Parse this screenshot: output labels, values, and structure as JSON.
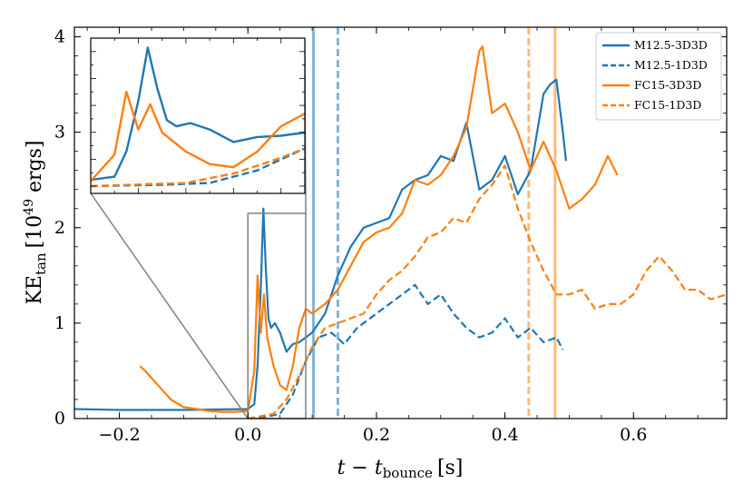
{
  "chart_data": {
    "type": "line",
    "xlabel": "t − t",
    "xlabel_sub": "bounce",
    "xlabel_unit": "[s]",
    "ylabel": "KE",
    "ylabel_sub": "tan",
    "ylabel_unit": "[10",
    "ylabel_exp": "49",
    "ylabel_unit_end": " ergs]",
    "xlim": [
      -0.27,
      0.745
    ],
    "ylim": [
      0,
      4.1
    ],
    "xticks": [
      -0.2,
      0.0,
      0.2,
      0.4,
      0.6
    ],
    "xtick_labels": [
      "−0.2",
      "0.0",
      "0.2",
      "0.4",
      "0.6"
    ],
    "yticks": [
      0,
      1,
      2,
      3,
      4
    ],
    "ytick_labels": [
      "0",
      "1",
      "2",
      "3",
      "4"
    ],
    "grid": false,
    "legend_position": "top-right",
    "colors": {
      "blue": "#1f77b4",
      "orange": "#ff7f0e"
    },
    "series": [
      {
        "name": "M12.5-3D3D",
        "color": "#1f77b4",
        "style": "solid",
        "x": [
          -0.27,
          -0.2,
          -0.1,
          0.0,
          0.01,
          0.015,
          0.02,
          0.024,
          0.028,
          0.032,
          0.036,
          0.042,
          0.05,
          0.06,
          0.07,
          0.08,
          0.09,
          0.1,
          0.12,
          0.14,
          0.16,
          0.18,
          0.2,
          0.22,
          0.24,
          0.26,
          0.28,
          0.3,
          0.32,
          0.34,
          0.36,
          0.38,
          0.4,
          0.42,
          0.44,
          0.46,
          0.47,
          0.48,
          0.49,
          0.495
        ],
        "y": [
          0.1,
          0.09,
          0.09,
          0.1,
          0.15,
          0.55,
          1.35,
          2.2,
          1.55,
          1.05,
          0.95,
          1.0,
          0.9,
          0.7,
          0.78,
          0.8,
          0.85,
          0.9,
          1.1,
          1.5,
          1.8,
          2.0,
          2.05,
          2.1,
          2.4,
          2.5,
          2.55,
          2.75,
          2.7,
          3.1,
          2.4,
          2.5,
          2.75,
          2.35,
          2.6,
          3.4,
          3.5,
          3.55,
          3.0,
          2.7
        ]
      },
      {
        "name": "M12.5-1D3D",
        "color": "#1f77b4",
        "style": "dashed",
        "x": [
          0.0,
          0.03,
          0.05,
          0.07,
          0.09,
          0.11,
          0.13,
          0.15,
          0.17,
          0.2,
          0.23,
          0.26,
          0.28,
          0.3,
          0.32,
          0.34,
          0.36,
          0.38,
          0.4,
          0.42,
          0.44,
          0.46,
          0.48,
          0.49
        ],
        "y": [
          0.0,
          0.02,
          0.05,
          0.25,
          0.6,
          0.85,
          0.9,
          0.78,
          0.95,
          1.1,
          1.25,
          1.4,
          1.2,
          1.3,
          1.1,
          0.95,
          0.85,
          0.9,
          1.05,
          0.85,
          0.95,
          0.8,
          0.85,
          0.72
        ]
      },
      {
        "name": "FC15-3D3D",
        "color": "#ff7f0e",
        "style": "solid",
        "x": [
          -0.168,
          -0.16,
          -0.14,
          -0.12,
          -0.1,
          -0.08,
          -0.06,
          -0.04,
          -0.02,
          0.0,
          0.01,
          0.015,
          0.02,
          0.025,
          0.03,
          0.04,
          0.05,
          0.06,
          0.07,
          0.08,
          0.09,
          0.1,
          0.12,
          0.14,
          0.16,
          0.18,
          0.2,
          0.22,
          0.24,
          0.26,
          0.28,
          0.3,
          0.32,
          0.34,
          0.36,
          0.365,
          0.38,
          0.4,
          0.42,
          0.44,
          0.46,
          0.48,
          0.5,
          0.52,
          0.54,
          0.56,
          0.575
        ],
        "y": [
          0.55,
          0.5,
          0.35,
          0.2,
          0.12,
          0.1,
          0.08,
          0.07,
          0.07,
          0.08,
          0.5,
          1.5,
          0.9,
          1.3,
          0.85,
          0.55,
          0.35,
          0.3,
          0.55,
          0.95,
          1.15,
          1.1,
          1.2,
          1.35,
          1.6,
          1.85,
          1.95,
          2.0,
          2.15,
          2.5,
          2.45,
          2.55,
          2.75,
          3.05,
          3.85,
          3.9,
          3.2,
          3.3,
          3.0,
          2.6,
          2.9,
          2.6,
          2.2,
          2.3,
          2.45,
          2.75,
          2.55
        ]
      },
      {
        "name": "FC15-1D3D",
        "color": "#ff7f0e",
        "style": "dashed",
        "x": [
          0.0,
          0.04,
          0.06,
          0.08,
          0.1,
          0.12,
          0.14,
          0.16,
          0.18,
          0.2,
          0.22,
          0.24,
          0.26,
          0.28,
          0.3,
          0.32,
          0.34,
          0.36,
          0.38,
          0.4,
          0.42,
          0.44,
          0.46,
          0.48,
          0.5,
          0.52,
          0.54,
          0.56,
          0.58,
          0.6,
          0.62,
          0.64,
          0.66,
          0.68,
          0.7,
          0.72,
          0.745
        ],
        "y": [
          0.0,
          0.05,
          0.2,
          0.45,
          0.75,
          0.95,
          1.0,
          1.05,
          1.1,
          1.3,
          1.45,
          1.55,
          1.7,
          1.9,
          1.95,
          2.1,
          2.05,
          2.3,
          2.45,
          2.65,
          2.2,
          1.85,
          1.55,
          1.3,
          1.3,
          1.35,
          1.15,
          1.2,
          1.2,
          1.3,
          1.55,
          1.7,
          1.55,
          1.35,
          1.35,
          1.25,
          1.3
        ]
      }
    ],
    "vertical_lines": [
      {
        "x": 0.102,
        "color": "#1f77b4",
        "style": "solid",
        "opacity": 0.55
      },
      {
        "x": 0.14,
        "color": "#1f77b4",
        "style": "dashed",
        "opacity": 0.55
      },
      {
        "x": 0.437,
        "color": "#ff7f0e",
        "style": "dashed",
        "opacity": 0.55
      },
      {
        "x": 0.478,
        "color": "#ff7f0e",
        "style": "solid",
        "opacity": 0.55
      }
    ],
    "inset": {
      "xlim": [
        0.0,
        0.09
      ],
      "ylim": [
        0.0,
        2.35
      ],
      "zoom_box_x": [
        0.0,
        0.09
      ],
      "zoom_box_y": [
        0.0,
        2.15
      ]
    }
  }
}
